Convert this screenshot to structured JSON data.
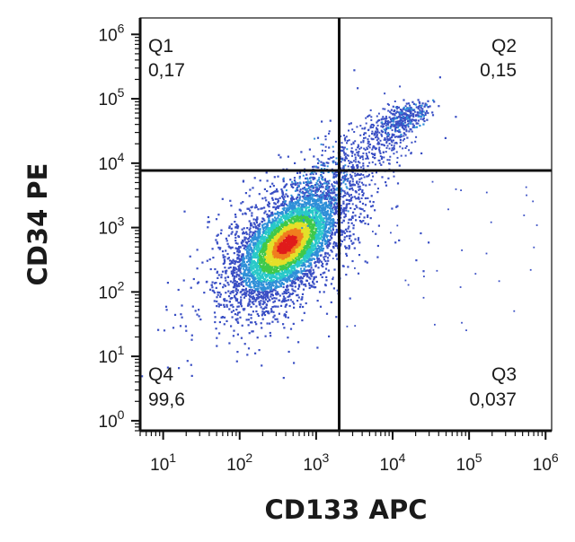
{
  "chart_data": {
    "type": "scatter",
    "subtype": "flow-cytometry-density-dot-plot",
    "xlabel": "CD133 APC",
    "ylabel": "CD34 PE",
    "x_scale": "log",
    "y_scale": "log",
    "xlim": [
      5,
      1200000
    ],
    "ylim": [
      0.7,
      1800000
    ],
    "x_ticks": [
      {
        "value": 10,
        "base": "10",
        "exp": "1"
      },
      {
        "value": 100,
        "base": "10",
        "exp": "2"
      },
      {
        "value": 1000,
        "base": "10",
        "exp": "3"
      },
      {
        "value": 10000,
        "base": "10",
        "exp": "4"
      },
      {
        "value": 100000,
        "base": "10",
        "exp": "5"
      },
      {
        "value": 1000000,
        "base": "10",
        "exp": "6"
      }
    ],
    "y_ticks": [
      {
        "value": 1,
        "base": "10",
        "exp": "0"
      },
      {
        "value": 10,
        "base": "10",
        "exp": "1"
      },
      {
        "value": 100,
        "base": "10",
        "exp": "2"
      },
      {
        "value": 1000,
        "base": "10",
        "exp": "3"
      },
      {
        "value": 10000,
        "base": "10",
        "exp": "4"
      },
      {
        "value": 100000,
        "base": "10",
        "exp": "5"
      },
      {
        "value": 1000000,
        "base": "10",
        "exp": "6"
      }
    ],
    "gate_x": 2000,
    "gate_y": 7700,
    "quadrants": [
      {
        "name": "Q1",
        "value": "0,17",
        "position": "top-left"
      },
      {
        "name": "Q2",
        "value": "0,15",
        "position": "top-right"
      },
      {
        "name": "Q3",
        "value": "0,037",
        "position": "bottom-right"
      },
      {
        "name": "Q4",
        "value": "99,6",
        "position": "bottom-left"
      }
    ],
    "main_population_center": [
      420,
      550
    ],
    "secondary_population_center": [
      15000,
      50000
    ],
    "grid": false,
    "colormap": [
      "#3a4fc4",
      "#2f8fd8",
      "#29c9c9",
      "#3fc94a",
      "#e3e02a",
      "#f07e1e",
      "#e01b1b"
    ]
  }
}
